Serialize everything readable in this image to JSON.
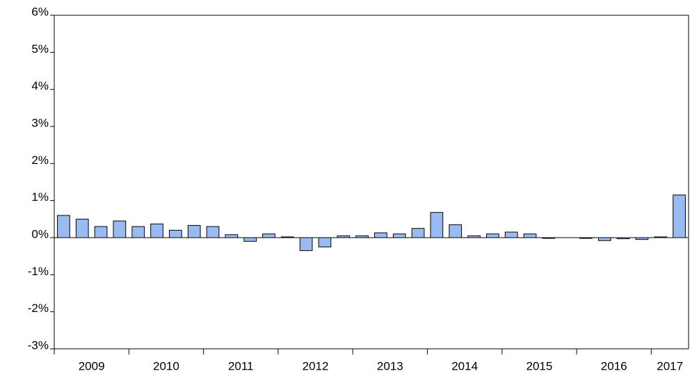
{
  "chart_data": {
    "type": "bar",
    "categories": [
      "2009",
      null,
      null,
      null,
      "2010",
      null,
      null,
      null,
      "2011",
      null,
      null,
      null,
      "2012",
      null,
      null,
      null,
      "2013",
      null,
      null,
      null,
      "2014",
      null,
      null,
      null,
      "2015",
      null,
      null,
      null,
      "2016",
      null,
      null,
      null,
      "2017",
      null
    ],
    "values": [
      0.6,
      0.5,
      0.3,
      0.45,
      0.3,
      0.37,
      0.2,
      0.33,
      0.3,
      0.08,
      -0.1,
      0.1,
      0.02,
      -0.35,
      -0.25,
      0.05,
      0.05,
      0.13,
      0.1,
      0.25,
      0.68,
      0.35,
      0.05,
      0.1,
      0.15,
      0.1,
      -0.02,
      0,
      -0.02,
      -0.08,
      -0.03,
      -0.05,
      0.02,
      1.15
    ],
    "color": "#99bbf2",
    "ylim": [
      -3,
      6
    ],
    "yticks": [
      {
        "value": -3,
        "label": "-3%"
      },
      {
        "value": -2,
        "label": "-2%"
      },
      {
        "value": -1,
        "label": "-1%"
      },
      {
        "value": 0,
        "label": "0%"
      },
      {
        "value": 1,
        "label": "1%"
      },
      {
        "value": 2,
        "label": "2%"
      },
      {
        "value": 3,
        "label": "3%"
      },
      {
        "value": 4,
        "label": "4%"
      },
      {
        "value": 5,
        "label": "5%"
      },
      {
        "value": 6,
        "label": "6%"
      }
    ]
  }
}
